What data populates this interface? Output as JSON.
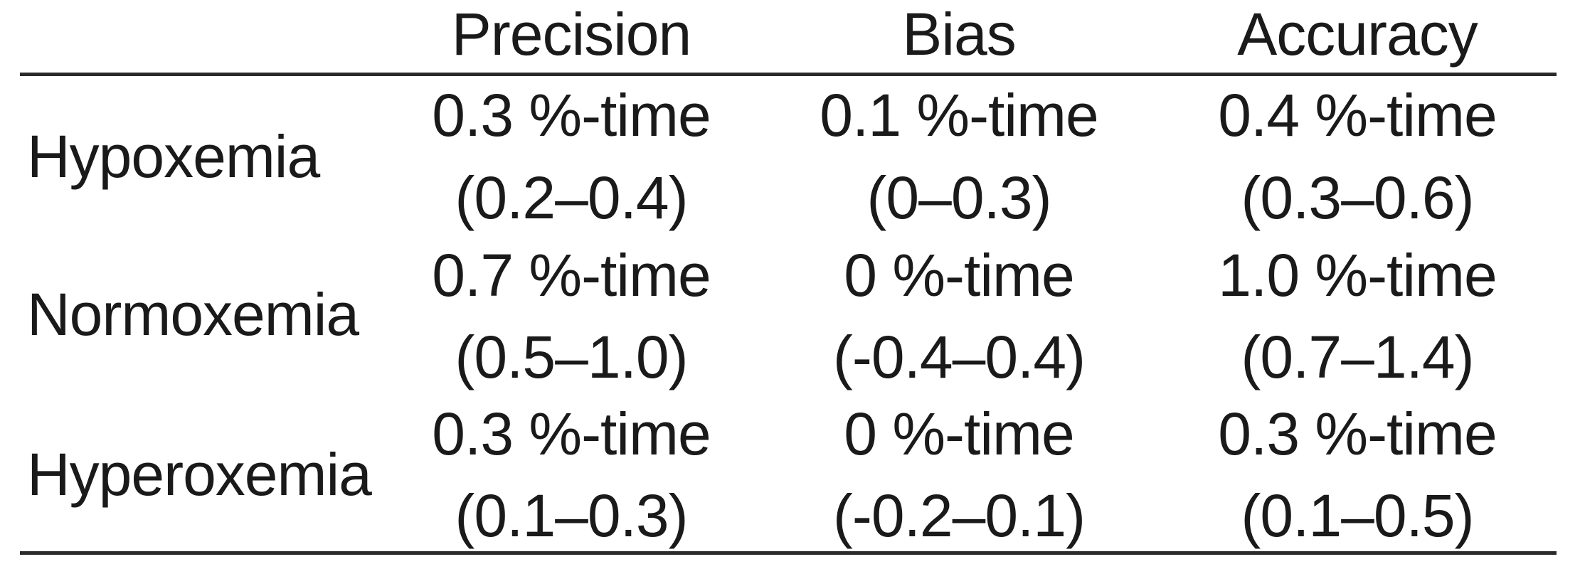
{
  "table": {
    "headers": [
      "",
      "Precision",
      "Bias",
      "Accuracy"
    ],
    "rows": [
      {
        "label": "Hypoxemia",
        "precision": {
          "value": "0.3 %-time",
          "ci": "(0.2–0.4)"
        },
        "bias": {
          "value": "0.1 %-time",
          "ci": "(0–0.3)"
        },
        "accuracy": {
          "value": "0.4 %-time",
          "ci": "(0.3–0.6)"
        }
      },
      {
        "label": "Normoxemia",
        "precision": {
          "value": "0.7 %-time",
          "ci": "(0.5–1.0)"
        },
        "bias": {
          "value": "0 %-time",
          "ci": "(-0.4–0.4)"
        },
        "accuracy": {
          "value": "1.0 %-time",
          "ci": "(0.7–1.4)"
        }
      },
      {
        "label": "Hyperoxemia",
        "precision": {
          "value": "0.3 %-time",
          "ci": "(0.1–0.3)"
        },
        "bias": {
          "value": "0 %-time",
          "ci": "(-0.2–0.1)"
        },
        "accuracy": {
          "value": "0.3 %-time",
          "ci": "(0.1–0.5)"
        }
      }
    ]
  }
}
